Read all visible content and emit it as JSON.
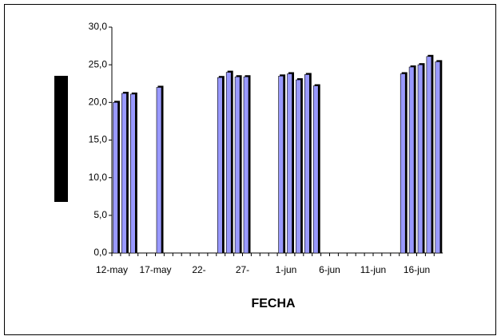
{
  "chart_data": {
    "type": "bar",
    "x_label": "FECHA",
    "categories": [
      "12-may",
      null,
      null,
      null,
      null,
      "17-may",
      null,
      null,
      null,
      null,
      "22-",
      null,
      null,
      null,
      null,
      "27-",
      null,
      null,
      null,
      null,
      "1-jun",
      null,
      null,
      null,
      null,
      "6-jun",
      null,
      null,
      null,
      null,
      "11-jun",
      null,
      null,
      null,
      null,
      "16-jun",
      null,
      null
    ],
    "values": [
      20.0,
      21.2,
      21.1,
      null,
      null,
      22.0,
      null,
      null,
      null,
      null,
      null,
      null,
      23.3,
      24.0,
      23.4,
      23.4,
      null,
      null,
      null,
      23.5,
      23.8,
      23.0,
      23.7,
      22.2,
      null,
      null,
      null,
      null,
      null,
      null,
      null,
      null,
      null,
      23.8,
      24.7,
      25.0,
      26.1,
      25.4
    ],
    "color": "#9999ff",
    "ylim": [
      0,
      30
    ],
    "yticks": [
      {
        "value": 0,
        "label": "0,0"
      },
      {
        "value": 5,
        "label": "5,0"
      },
      {
        "value": 10,
        "label": "10,0"
      },
      {
        "value": 15,
        "label": "15,0"
      },
      {
        "value": 20,
        "label": "20,0"
      },
      {
        "value": 25,
        "label": "25,0"
      },
      {
        "value": 30,
        "label": "30,0"
      }
    ],
    "grid": false
  }
}
